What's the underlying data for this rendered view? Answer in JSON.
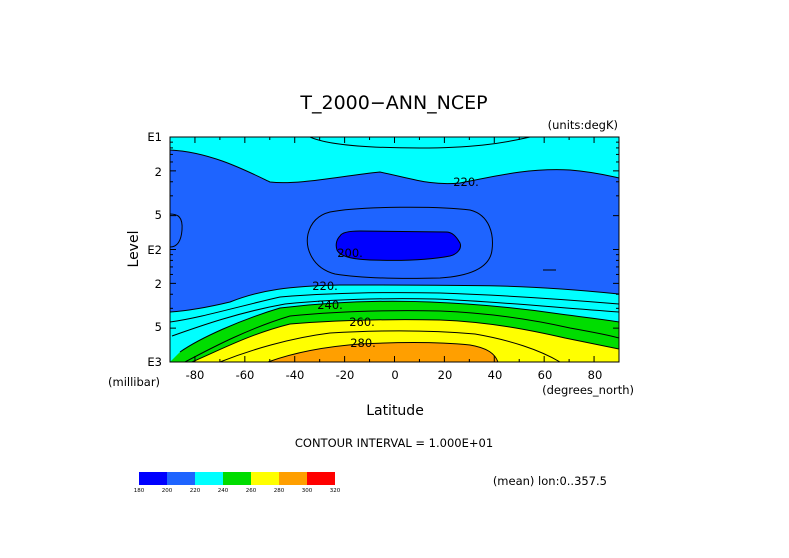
{
  "chart_data": {
    "type": "heatmap",
    "subtype": "filled-contour",
    "title": "T_2000−ANN_NCEP",
    "units_label": "(units:degK)",
    "xlabel": "Latitude",
    "ylabel": "Level",
    "x_units_label": "(degrees_north)",
    "y_units_label": "(millibar)",
    "xlim": [
      -90,
      90
    ],
    "ylim_pressure": [
      1000,
      10
    ],
    "y_scale": "log",
    "x_ticks": [
      -80,
      -60,
      -40,
      -20,
      0,
      20,
      40,
      60,
      80
    ],
    "y_ticks": [
      {
        "p": 10,
        "label": "E1"
      },
      {
        "p": 20,
        "label": "2"
      },
      {
        "p": 50,
        "label": "5"
      },
      {
        "p": 100,
        "label": "E2"
      },
      {
        "p": 200,
        "label": "2"
      },
      {
        "p": 500,
        "label": "5"
      },
      {
        "p": 1000,
        "label": "E3"
      }
    ],
    "contour_interval_text": "CONTOUR INTERVAL = 1.000E+01",
    "mean_text": "(mean) lon:0..357.5",
    "contour_labels": [
      {
        "text": "220.",
        "lat": 25,
        "p": 17
      },
      {
        "text": "200.",
        "lat": -17,
        "p": 110
      },
      {
        "text": "220.",
        "lat": -28,
        "p": 232
      },
      {
        "text": "240.",
        "lat": -25,
        "p": 330
      },
      {
        "text": "260.",
        "lat": -13,
        "p": 480
      },
      {
        "text": "280.",
        "lat": -13,
        "p": 740
      }
    ],
    "levels": [
      180,
      200,
      220,
      240,
      260,
      280,
      300,
      320
    ],
    "colorbar": [
      {
        "from": 180,
        "to": 200,
        "color": "#0000ff"
      },
      {
        "from": 200,
        "to": 220,
        "color": "#1e64ff"
      },
      {
        "from": 220,
        "to": 240,
        "color": "#00ffff"
      },
      {
        "from": 240,
        "to": 260,
        "color": "#00dd00"
      },
      {
        "from": 260,
        "to": 280,
        "color": "#ffff00"
      },
      {
        "from": 280,
        "to": 300,
        "color": "#ff9f00"
      },
      {
        "from": 300,
        "to": 320,
        "color": "#ff0000"
      }
    ],
    "colorbar_labels": [
      "180",
      "200",
      "220",
      "240",
      "260",
      "280",
      "300",
      "320"
    ]
  }
}
